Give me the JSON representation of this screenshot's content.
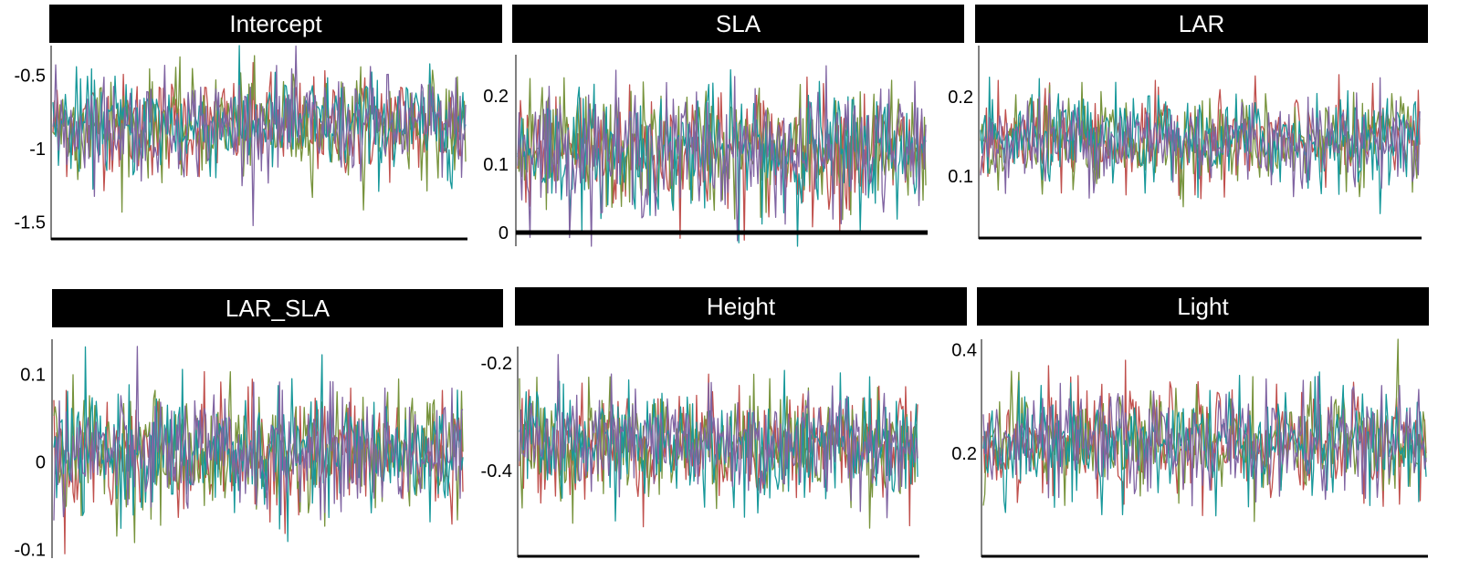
{
  "palette": [
    "#c0504d",
    "#77933c",
    "#17989a",
    "#8064a2"
  ],
  "chart_data": [
    {
      "type": "line",
      "title": "Intercept",
      "n_points": 300,
      "ylim": [
        -1.62,
        -0.3
      ],
      "yticks": [
        {
          "v": -0.5,
          "label": "-0.5"
        },
        {
          "v": -1,
          "label": "-1"
        },
        {
          "v": -1.5,
          "label": "-1.5"
        }
      ],
      "series": [
        {
          "values": []
        },
        {
          "values": []
        },
        {
          "values": []
        },
        {
          "values": []
        }
      ]
    },
    {
      "type": "line",
      "title": "SLA",
      "n_points": 300,
      "ylim": [
        -0.02,
        0.26
      ],
      "yticks": [
        {
          "v": 0.2,
          "label": "0.2"
        },
        {
          "v": 0.1,
          "label": "0.1"
        },
        {
          "v": 0,
          "label": "0"
        }
      ],
      "series": [
        {
          "values": []
        },
        {
          "values": []
        },
        {
          "values": []
        },
        {
          "values": []
        }
      ]
    },
    {
      "type": "line",
      "title": "LAR",
      "n_points": 300,
      "ylim": [
        0.02,
        0.265
      ],
      "yticks": [
        {
          "v": 0.2,
          "label": "0.2"
        },
        {
          "v": 0.1,
          "label": "0.1"
        }
      ],
      "series": [
        {
          "values": []
        },
        {
          "values": []
        },
        {
          "values": []
        },
        {
          "values": []
        }
      ]
    },
    {
      "type": "line",
      "title": "LAR_SLA",
      "n_points": 300,
      "ylim": [
        -0.11,
        0.14
      ],
      "yticks": [
        {
          "v": 0.1,
          "label": "0.1"
        },
        {
          "v": 0,
          "label": "0"
        },
        {
          "v": -0.1,
          "label": "-0.1"
        }
      ],
      "series": [
        {
          "values": []
        },
        {
          "values": []
        },
        {
          "values": []
        },
        {
          "values": []
        }
      ]
    },
    {
      "type": "line",
      "title": "Height",
      "n_points": 300,
      "ylim": [
        -0.56,
        -0.17
      ],
      "yticks": [
        {
          "v": -0.2,
          "label": "-0.2"
        },
        {
          "v": -0.4,
          "label": "-0.4"
        }
      ],
      "series": [
        {
          "values": []
        },
        {
          "values": []
        },
        {
          "values": []
        },
        {
          "values": []
        }
      ]
    },
    {
      "type": "line",
      "title": "Light",
      "n_points": 300,
      "ylim": [
        0.0,
        0.42
      ],
      "yticks": [
        {
          "v": 0.4,
          "label": "0.4"
        },
        {
          "v": 0.2,
          "label": "0.2"
        }
      ],
      "series": [
        {
          "values": []
        },
        {
          "values": []
        },
        {
          "values": []
        },
        {
          "values": []
        }
      ]
    }
  ]
}
